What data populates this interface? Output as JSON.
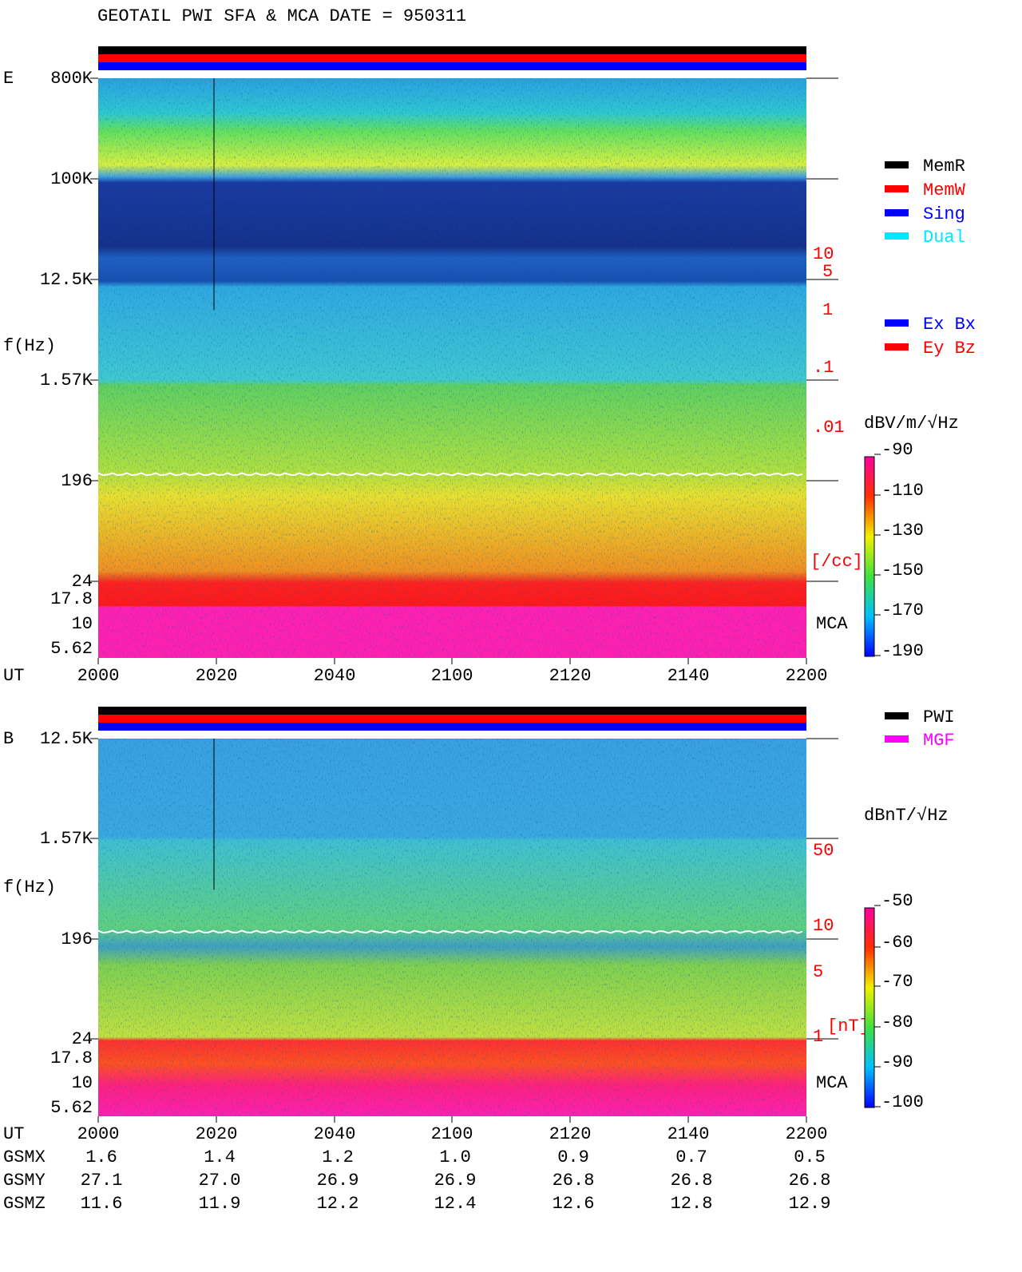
{
  "header": {
    "title": "GEOTAIL  PWI SFA & MCA   DATE = 950311"
  },
  "panels": [
    {
      "label": "E",
      "y_label": "f(Hz)",
      "y_ticks": [
        "800K",
        "100K",
        "12.5K",
        "1.57K",
        "196",
        "24",
        "17.8",
        "10",
        "5.62"
      ],
      "right_ticks": [
        "10",
        "5",
        "1",
        ".1",
        ".01",
        "[/cc]"
      ],
      "mca_label": "MCA",
      "legend": [
        {
          "name": "MemR",
          "color": "#000000"
        },
        {
          "name": "MemW",
          "color": "#ff0000"
        },
        {
          "name": "Sing",
          "color": "#0000ff"
        },
        {
          "name": "Dual",
          "color": "#00e8ff"
        },
        {
          "name": "Ex Bx",
          "color": "#0000ff"
        },
        {
          "name": "Ey Bz",
          "color": "#ff0000"
        }
      ],
      "colorbar": {
        "title": "dBV/m/√Hz",
        "ticks": [
          "-90",
          "-110",
          "-130",
          "-150",
          "-170",
          "-190"
        ]
      },
      "x_label": "UT",
      "x_ticks": [
        "2000",
        "2020",
        "2040",
        "2100",
        "2120",
        "2140",
        "2200"
      ]
    },
    {
      "label": "B",
      "y_label": "f(Hz)",
      "y_ticks": [
        "12.5K",
        "1.57K",
        "196",
        "24",
        "17.8",
        "10",
        "5.62"
      ],
      "right_ticks": [
        "50",
        "10",
        "5",
        "1",
        "[nT]"
      ],
      "mca_label": "MCA",
      "legend": [
        {
          "name": "PWI",
          "color": "#000000"
        },
        {
          "name": "MGF",
          "color": "#ff00ff"
        }
      ],
      "colorbar": {
        "title": "dBnT/√Hz",
        "ticks": [
          "-50",
          "-60",
          "-70",
          "-80",
          "-90",
          "-100"
        ]
      },
      "x_label": "UT",
      "x_ticks": [
        "2000",
        "2020",
        "2040",
        "2100",
        "2120",
        "2140",
        "2200"
      ]
    }
  ],
  "orbit": {
    "rows": [
      {
        "label": "GSMX",
        "values": [
          "1.6",
          "1.4",
          "1.2",
          "1.0",
          "0.9",
          "0.7",
          "0.5"
        ]
      },
      {
        "label": "GSMY",
        "values": [
          "27.1",
          "27.0",
          "26.9",
          "26.9",
          "26.8",
          "26.8",
          "26.8"
        ]
      },
      {
        "label": "GSMZ",
        "values": [
          "11.6",
          "11.9",
          "12.2",
          "12.4",
          "12.6",
          "12.8",
          "12.9"
        ]
      }
    ]
  }
}
